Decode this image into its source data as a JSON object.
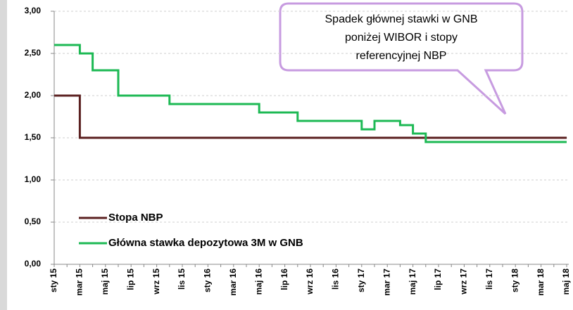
{
  "chart_data": {
    "type": "line",
    "step": true,
    "categories": [
      "sty 15",
      null,
      "mar 15",
      null,
      "maj 15",
      null,
      "lip 15",
      null,
      "wrz 15",
      null,
      "lis 15",
      null,
      "sty 16",
      null,
      "mar 16",
      null,
      "maj 16",
      null,
      "lip 16",
      null,
      "wrz 16",
      null,
      "lis 16",
      null,
      "sty 17",
      null,
      "mar 17",
      null,
      "maj 17",
      null,
      "lip 17",
      null,
      "wrz 17",
      null,
      "lis 17",
      null,
      "sty 18",
      null,
      "mar 18",
      null,
      "maj 18"
    ],
    "series": [
      {
        "name": "Stopa NBP",
        "color": "#5b2020",
        "values": [
          2.0,
          2.0,
          1.5,
          1.5,
          1.5,
          1.5,
          1.5,
          1.5,
          1.5,
          1.5,
          1.5,
          1.5,
          1.5,
          1.5,
          1.5,
          1.5,
          1.5,
          1.5,
          1.5,
          1.5,
          1.5,
          1.5,
          1.5,
          1.5,
          1.5,
          1.5,
          1.5,
          1.5,
          1.5,
          1.5,
          1.5,
          1.5,
          1.5,
          1.5,
          1.5,
          1.5,
          1.5,
          1.5,
          1.5,
          1.5,
          1.5
        ]
      },
      {
        "name": "Główna stawka depozytowa 3M w GNB",
        "color": "#1db954",
        "values": [
          2.6,
          2.6,
          2.5,
          2.3,
          2.3,
          2.0,
          2.0,
          2.0,
          2.0,
          1.9,
          1.9,
          1.9,
          1.9,
          1.9,
          1.9,
          1.9,
          1.8,
          1.8,
          1.8,
          1.7,
          1.7,
          1.7,
          1.7,
          1.7,
          1.6,
          1.7,
          1.7,
          1.65,
          1.55,
          1.45,
          1.45,
          1.45,
          1.45,
          1.45,
          1.45,
          1.45,
          1.45,
          1.45,
          1.45,
          1.45,
          1.45
        ]
      }
    ],
    "ylim": [
      0,
      3
    ],
    "yticks": [
      {
        "value": 0,
        "label": "0,00"
      },
      {
        "value": 0.5,
        "label": "0,50"
      },
      {
        "value": 1,
        "label": "1,00"
      },
      {
        "value": 1.5,
        "label": "1,50"
      },
      {
        "value": 2,
        "label": "2,00"
      },
      {
        "value": 2.5,
        "label": "2,50"
      },
      {
        "value": 3,
        "label": "3,00"
      }
    ],
    "grid": true,
    "annotation": [
      "Spadek głównej stawki w GNB",
      "poniżej WIBOR i stopy",
      "referencyjnej NBP"
    ]
  }
}
